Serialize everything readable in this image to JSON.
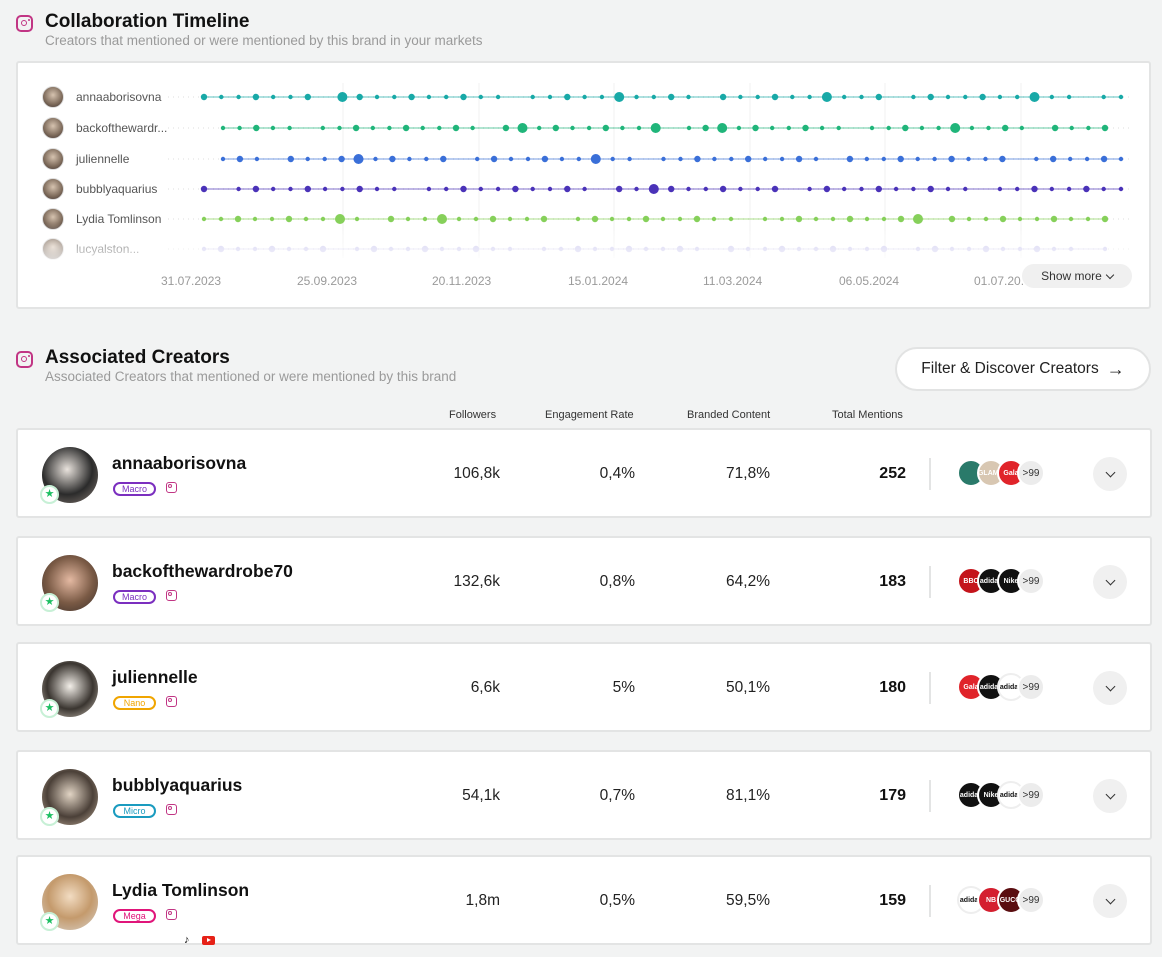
{
  "timeline": {
    "title": "Collaboration Timeline",
    "subtitle": "Creators that mentioned or were mentioned by this brand in your markets",
    "creators": [
      {
        "name": "annaaborisovna",
        "color": "#18a9a7"
      },
      {
        "name": "backofthewardr...",
        "color": "#20b57a"
      },
      {
        "name": "juliennelle",
        "color": "#3a6fd8"
      },
      {
        "name": "bubblyaquarius",
        "color": "#4a32b8"
      },
      {
        "name": "Lydia Tomlinson",
        "color": "#86d05a"
      },
      {
        "name": "lucyalston...",
        "color": "#c9c6ee"
      }
    ],
    "dates": [
      "31.07.2023",
      "25.09.2023",
      "20.11.2023",
      "15.01.2024",
      "11.03.2024",
      "06.05.2024",
      "01.07.20..."
    ],
    "show_more": "Show more"
  },
  "creators_section": {
    "title": "Associated Creators",
    "subtitle": "Associated Creators that mentioned or were mentioned by this brand",
    "filter_button": "Filter & Discover Creators",
    "columns": [
      "Followers",
      "Engagement Rate",
      "Branded Content",
      "Total Mentions"
    ],
    "rows": [
      {
        "name": "annaaborisovna",
        "tier": "Macro",
        "tier_color": "#7b2fbf",
        "followers": "106,8k",
        "engagement": "0,4%",
        "branded": "71,8%",
        "mentions": "252",
        "more": ">99",
        "brands": [
          {
            "label": "",
            "bg": "#2a7a6a"
          },
          {
            "label": "GLAMO",
            "bg": "#d8c7b2"
          },
          {
            "label": "Gala",
            "bg": "#e0242a"
          }
        ]
      },
      {
        "name": "backofthewardrobe70",
        "tier": "Macro",
        "tier_color": "#7b2fbf",
        "followers": "132,6k",
        "engagement": "0,8%",
        "branded": "64,2%",
        "mentions": "183",
        "more": ">99",
        "brands": [
          {
            "label": "BBC",
            "bg": "#c4141b"
          },
          {
            "label": "adidas",
            "bg": "#111111"
          },
          {
            "label": "Nike",
            "bg": "#111111"
          }
        ]
      },
      {
        "name": "juliennelle",
        "tier": "Nano",
        "tier_color": "#f0a500",
        "followers": "6,6k",
        "engagement": "5%",
        "branded": "50,1%",
        "mentions": "180",
        "more": ">99",
        "brands": [
          {
            "label": "Gala",
            "bg": "#e0242a"
          },
          {
            "label": "adidas",
            "bg": "#111111"
          },
          {
            "label": "adidas",
            "bg": "#ffffff"
          }
        ]
      },
      {
        "name": "bubblyaquarius",
        "tier": "Micro",
        "tier_color": "#1a9bbf",
        "followers": "54,1k",
        "engagement": "0,7%",
        "branded": "81,1%",
        "mentions": "179",
        "more": ">99",
        "brands": [
          {
            "label": "adidas",
            "bg": "#111111"
          },
          {
            "label": "Nike",
            "bg": "#111111"
          },
          {
            "label": "adidas",
            "bg": "#ffffff"
          }
        ]
      },
      {
        "name": "Lydia Tomlinson",
        "tier": "Mega",
        "tier_color": "#e0157a",
        "followers": "1,8m",
        "engagement": "0,5%",
        "branded": "59,5%",
        "mentions": "159",
        "more": ">99",
        "brands": [
          {
            "label": "adidas",
            "bg": "#ffffff"
          },
          {
            "label": "NB",
            "bg": "#d41f2f"
          },
          {
            "label": "GUCCI",
            "bg": "#5a0d10"
          }
        ]
      }
    ]
  }
}
